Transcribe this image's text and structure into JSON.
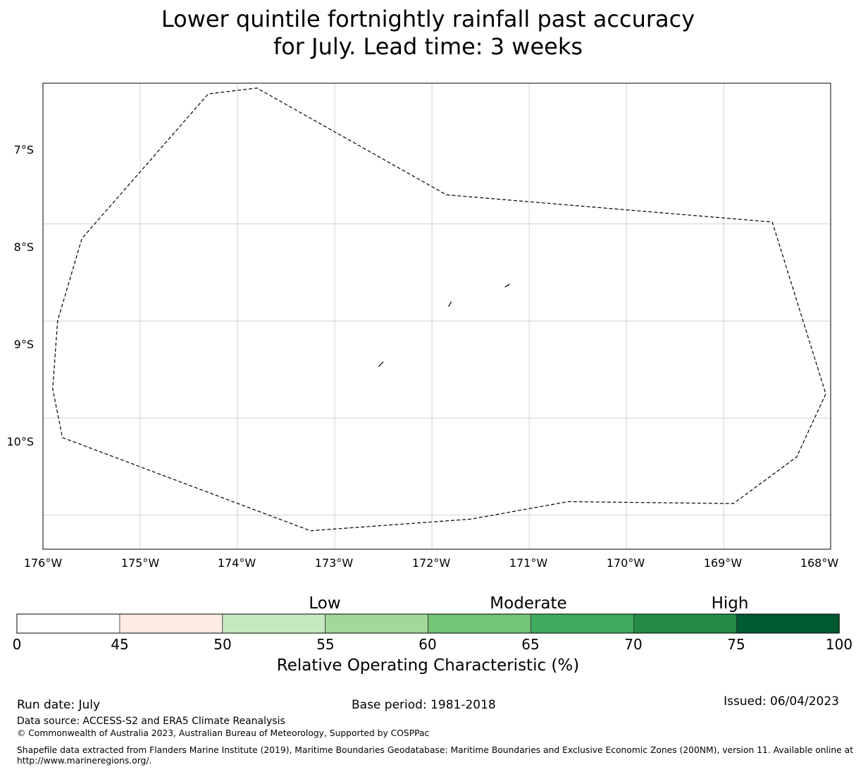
{
  "title_lines": [
    "Lower quintile fortnightly rainfall past accuracy",
    "for July. Lead time: 3 weeks"
  ],
  "map": {
    "lat_labels": [
      "7°S",
      "8°S",
      "9°S",
      "10°S"
    ],
    "lon_labels": [
      "176°W",
      "175°W",
      "174°W",
      "173°W",
      "172°W",
      "171°W",
      "170°W",
      "169°W",
      "168°W"
    ],
    "lon_range": [
      -176,
      -167.9
    ],
    "lat_range": [
      -11.45,
      -6.65
    ],
    "grid_lats": [
      -7,
      -8,
      -9,
      -10
    ],
    "grid_lons": [
      -175,
      -174,
      -173,
      -172,
      -171,
      -170,
      -169
    ],
    "cell_colors": {
      "dark": "#00592f",
      "mid": "#238a45",
      "light": "#42a95a"
    },
    "cells": [
      {
        "lon": [
          -176,
          -174.17
        ],
        "lat": [
          -6.65,
          -7.02
        ],
        "c": "dark"
      },
      {
        "lon": [
          -174.17,
          -169.17
        ],
        "lat": [
          -6.65,
          -7.02
        ],
        "c": "mid"
      },
      {
        "lon": [
          -169.17,
          -167.9
        ],
        "lat": [
          -6.65,
          -7.02
        ],
        "c": "dark"
      },
      {
        "lon": [
          -176,
          -175.83
        ],
        "lat": [
          -7.02,
          -7.58
        ],
        "c": "light"
      },
      {
        "lon": [
          -175.83,
          -175.0
        ],
        "lat": [
          -7.02,
          -7.58
        ],
        "c": "mid"
      },
      {
        "lon": [
          -175.0,
          -173.33
        ],
        "lat": [
          -7.02,
          -7.58
        ],
        "c": "dark"
      },
      {
        "lon": [
          -173.33,
          -170.0
        ],
        "lat": [
          -7.02,
          -7.58
        ],
        "c": "mid"
      },
      {
        "lon": [
          -170.0,
          -168.33
        ],
        "lat": [
          -7.02,
          -7.58
        ],
        "c": "light"
      },
      {
        "lon": [
          -168.33,
          -167.9
        ],
        "lat": [
          -7.02,
          -7.58
        ],
        "c": "mid"
      },
      {
        "lon": [
          -176,
          -175.83
        ],
        "lat": [
          -7.58,
          -8.13
        ],
        "c": "mid"
      },
      {
        "lon": [
          -175.83,
          -175.0
        ],
        "lat": [
          -7.58,
          -8.13
        ],
        "c": "light"
      },
      {
        "lon": [
          -175.0,
          -174.17
        ],
        "lat": [
          -7.58,
          -8.13
        ],
        "c": "mid"
      },
      {
        "lon": [
          -174.17,
          -171.67
        ],
        "lat": [
          -7.58,
          -8.13
        ],
        "c": "dark"
      },
      {
        "lon": [
          -171.67,
          -170.0
        ],
        "lat": [
          -7.58,
          -8.13
        ],
        "c": "mid"
      },
      {
        "lon": [
          -170.0,
          -167.9
        ],
        "lat": [
          -7.58,
          -8.13
        ],
        "c": "dark"
      },
      {
        "lon": [
          -176,
          -175.83
        ],
        "lat": [
          -8.13,
          -8.35
        ],
        "c": "mid"
      },
      {
        "lon": [
          -175.83,
          -175.0
        ],
        "lat": [
          -8.13,
          -8.35
        ],
        "c": "light"
      },
      {
        "lon": [
          -175.0,
          -169.17
        ],
        "lat": [
          -8.13,
          -8.35
        ],
        "c": "mid"
      },
      {
        "lon": [
          -169.17,
          -167.9
        ],
        "lat": [
          -8.13,
          -8.35
        ],
        "c": "dark"
      },
      {
        "lon": [
          -176,
          -175.83
        ],
        "lat": [
          -8.35,
          -8.68
        ],
        "c": "light"
      },
      {
        "lon": [
          -175.83,
          -174.17
        ],
        "lat": [
          -8.35,
          -8.68
        ],
        "c": "light"
      },
      {
        "lon": [
          -174.17,
          -173.33
        ],
        "lat": [
          -8.35,
          -8.68
        ],
        "c": "mid"
      },
      {
        "lon": [
          -173.33,
          -172.5
        ],
        "lat": [
          -8.35,
          -8.68
        ],
        "c": "dark"
      },
      {
        "lon": [
          -172.5,
          -169.17
        ],
        "lat": [
          -8.35,
          -8.68
        ],
        "c": "mid"
      },
      {
        "lon": [
          -169.17,
          -167.9
        ],
        "lat": [
          -8.35,
          -8.68
        ],
        "c": "dark"
      },
      {
        "lon": [
          -176,
          -174.17
        ],
        "lat": [
          -8.68,
          -8.91
        ],
        "c": "light"
      },
      {
        "lon": [
          -174.17,
          -173.33
        ],
        "lat": [
          -8.68,
          -8.91
        ],
        "c": "mid"
      },
      {
        "lon": [
          -173.33,
          -172.5
        ],
        "lat": [
          -8.68,
          -8.91
        ],
        "c": "dark"
      },
      {
        "lon": [
          -172.5,
          -170.83
        ],
        "lat": [
          -8.68,
          -8.91
        ],
        "c": "mid"
      },
      {
        "lon": [
          -170.83,
          -167.9
        ],
        "lat": [
          -8.68,
          -8.91
        ],
        "c": "dark"
      },
      {
        "lon": [
          -176,
          -171.67
        ],
        "lat": [
          -8.91,
          -9.46
        ],
        "c": "mid"
      },
      {
        "lon": [
          -171.67,
          -170.0
        ],
        "lat": [
          -8.91,
          -9.46
        ],
        "c": "dark"
      },
      {
        "lon": [
          -170.0,
          -169.17
        ],
        "lat": [
          -8.91,
          -9.46
        ],
        "c": "mid"
      },
      {
        "lon": [
          -169.17,
          -167.9
        ],
        "lat": [
          -8.91,
          -9.46
        ],
        "c": "dark"
      },
      {
        "lon": [
          -176,
          -173.33
        ],
        "lat": [
          -9.46,
          -10.02
        ],
        "c": "dark"
      },
      {
        "lon": [
          -173.33,
          -170.83
        ],
        "lat": [
          -9.46,
          -10.02
        ],
        "c": "mid"
      },
      {
        "lon": [
          -170.83,
          -167.9
        ],
        "lat": [
          -9.46,
          -10.02
        ],
        "c": "dark"
      },
      {
        "lon": [
          -176,
          -171.67
        ],
        "lat": [
          -10.02,
          -10.57
        ],
        "c": "dark"
      },
      {
        "lon": [
          -171.67,
          -170.83
        ],
        "lat": [
          -10.02,
          -10.57
        ],
        "c": "mid"
      },
      {
        "lon": [
          -170.83,
          -169.17
        ],
        "lat": [
          -10.02,
          -10.57
        ],
        "c": "dark"
      },
      {
        "lon": [
          -169.17,
          -168.33
        ],
        "lat": [
          -10.02,
          -10.57
        ],
        "c": "mid"
      },
      {
        "lon": [
          -168.33,
          -167.9
        ],
        "lat": [
          -10.02,
          -10.57
        ],
        "c": "dark"
      },
      {
        "lon": [
          -176,
          -167.9
        ],
        "lat": [
          -10.57,
          -11.45
        ],
        "c": "dark"
      }
    ],
    "eez_boundary": [
      [
        -175.8,
        -7.8
      ],
      [
        -173.25,
        -6.84
      ],
      [
        -171.6,
        -6.96
      ],
      [
        -170.6,
        -7.14
      ],
      [
        -168.9,
        -7.12
      ],
      [
        -168.25,
        -7.6
      ],
      [
        -167.95,
        -8.25
      ],
      [
        -168.5,
        -10.02
      ],
      [
        -171.85,
        -10.3
      ],
      [
        -173.8,
        -11.4
      ],
      [
        -174.3,
        -11.34
      ],
      [
        -175.6,
        -9.85
      ],
      [
        -175.85,
        -9.0
      ],
      [
        -175.9,
        -8.3
      ],
      [
        -175.8,
        -7.8
      ]
    ],
    "islands": [
      [
        [
          -172.55,
          -8.53
        ],
        [
          -172.5,
          -8.58
        ]
      ],
      [
        [
          -171.83,
          -9.15
        ],
        [
          -171.8,
          -9.2
        ]
      ],
      [
        [
          -171.25,
          -9.35
        ],
        [
          -171.2,
          -9.38
        ]
      ]
    ]
  },
  "colorbar": {
    "bins": [
      {
        "from": 0,
        "to": 45,
        "color": "#ffffff"
      },
      {
        "from": 45,
        "to": 50,
        "color": "#feebe2"
      },
      {
        "from": 50,
        "to": 55,
        "color": "#c7e9c0"
      },
      {
        "from": 55,
        "to": 60,
        "color": "#a1d99b"
      },
      {
        "from": 60,
        "to": 65,
        "color": "#74c476"
      },
      {
        "from": 65,
        "to": 70,
        "color": "#41ab5d"
      },
      {
        "from": 70,
        "to": 75,
        "color": "#238b45"
      },
      {
        "from": 75,
        "to": 100,
        "color": "#005a32"
      }
    ],
    "tick_labels": [
      "0",
      "45",
      "50",
      "55",
      "60",
      "65",
      "70",
      "75",
      "100"
    ],
    "categories": [
      "Low",
      "Moderate",
      "High"
    ],
    "title": "Relative Operating Characteristic (%)"
  },
  "footer": {
    "run_date": "Run date: July",
    "base_period": "Base period: 1981-2018",
    "issued": "Issued: 06/04/2023",
    "data_source": "Data source: ACCESS-S2 and ERA5 Climate Reanalysis",
    "copyright": "© Commonwealth of Australia 2023, Australian Bureau of Meteorology, Supported by COSPPac",
    "shapefile_line1": "Shapefile data extracted from Flanders Marine Institute (2019), Maritime Boundaries Geodatabase: Maritime Boundaries and Exclusive Economic Zones (200NM), version 11. Available online at",
    "shapefile_line2": "http://www.marineregions.org/."
  }
}
